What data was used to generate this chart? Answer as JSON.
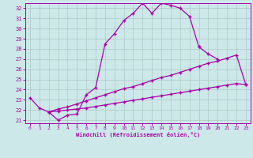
{
  "xlabel": "Windchill (Refroidissement éolien,°C)",
  "bg_color": "#cce8e8",
  "grid_color": "#b0c8c8",
  "line_color": "#aa00aa",
  "xmin": -0.5,
  "xmax": 23.5,
  "ymin": 20.7,
  "ymax": 32.5,
  "yticks": [
    21,
    22,
    23,
    24,
    25,
    26,
    27,
    28,
    29,
    30,
    31,
    32
  ],
  "xticks": [
    0,
    1,
    2,
    3,
    4,
    5,
    6,
    7,
    8,
    9,
    10,
    11,
    12,
    13,
    14,
    15,
    16,
    17,
    18,
    19,
    20,
    21,
    22,
    23
  ],
  "curve1_x": [
    0,
    1,
    2,
    3,
    4,
    5,
    6,
    7,
    8,
    9,
    10,
    11,
    12,
    13,
    14,
    15,
    16,
    17,
    18
  ],
  "curve1_y": [
    23.2,
    22.2,
    21.8,
    21.0,
    21.5,
    21.6,
    23.5,
    24.2,
    28.5,
    29.5,
    30.8,
    31.5,
    32.5,
    31.5,
    32.5,
    32.3,
    32.0,
    31.2,
    28.2
  ],
  "curve2_x": [
    18,
    19,
    20
  ],
  "curve2_y": [
    28.2,
    27.5,
    27.0
  ],
  "curve3_x": [
    2,
    3,
    4,
    5,
    6,
    7,
    8,
    9,
    10,
    11,
    12,
    13,
    14,
    15,
    16,
    17,
    18,
    19,
    20,
    21,
    22,
    23
  ],
  "curve3_y": [
    21.8,
    22.1,
    22.3,
    22.6,
    22.9,
    23.2,
    23.5,
    23.8,
    24.1,
    24.3,
    24.6,
    24.9,
    25.2,
    25.4,
    25.7,
    26.0,
    26.3,
    26.6,
    26.8,
    27.1,
    27.4,
    24.5
  ],
  "curve4_x": [
    2,
    3,
    4,
    5,
    6,
    7,
    8,
    9,
    10,
    11,
    12,
    13,
    14,
    15,
    16,
    17,
    18,
    19,
    20,
    21,
    22,
    23
  ],
  "curve4_y": [
    21.8,
    21.9,
    22.0,
    22.1,
    22.2,
    22.35,
    22.5,
    22.65,
    22.8,
    22.95,
    23.1,
    23.25,
    23.4,
    23.55,
    23.7,
    23.85,
    24.0,
    24.15,
    24.3,
    24.45,
    24.6,
    24.5
  ]
}
